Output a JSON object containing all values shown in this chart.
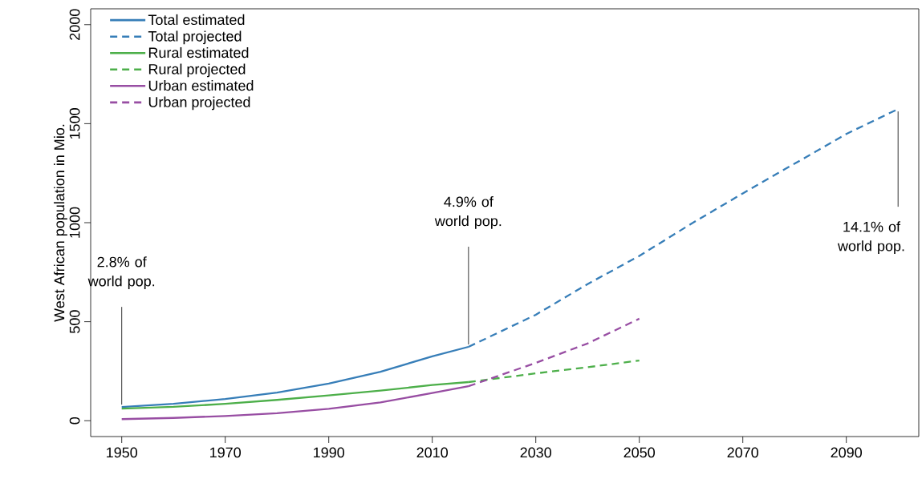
{
  "chart_data": {
    "type": "line",
    "ylabel": "West African population in Mio.",
    "xlim": [
      1944,
      2104
    ],
    "ylim": [
      -80,
      2080
    ],
    "xticks": [
      1950,
      1970,
      1990,
      2010,
      2030,
      2050,
      2070,
      2090
    ],
    "yticks": [
      0,
      500,
      1000,
      1500,
      2000
    ],
    "legend": "top left",
    "series": [
      {
        "name": "Total estimated",
        "color": "#377eb8",
        "line_style": "solid",
        "x": [
          1950,
          1960,
          1970,
          1980,
          1990,
          2000,
          2010,
          2017
        ],
        "values": [
          69,
          85,
          110,
          142,
          187,
          247,
          325,
          373
        ]
      },
      {
        "name": "Total projected",
        "color": "#377eb8",
        "line_style": "dashed",
        "x": [
          2017,
          2030,
          2040,
          2050,
          2060,
          2070,
          2080,
          2090,
          2100
        ],
        "values": [
          373,
          535,
          690,
          832,
          994,
          1148,
          1298,
          1448,
          1574
        ]
      },
      {
        "name": "Rural estimated",
        "color": "#4daf4a",
        "line_style": "solid",
        "x": [
          1950,
          1960,
          1970,
          1980,
          1990,
          2000,
          2010,
          2017
        ],
        "values": [
          61,
          70,
          85,
          105,
          128,
          152,
          180,
          195
        ]
      },
      {
        "name": "Rural projected",
        "color": "#4daf4a",
        "line_style": "dashed",
        "x": [
          2017,
          2030,
          2040,
          2050
        ],
        "values": [
          195,
          239,
          270,
          304
        ]
      },
      {
        "name": "Urban estimated",
        "color": "#984ea3",
        "line_style": "solid",
        "x": [
          1950,
          1960,
          1970,
          1980,
          1990,
          2000,
          2010,
          2017
        ],
        "values": [
          8,
          14,
          24,
          38,
          60,
          92,
          140,
          174
        ]
      },
      {
        "name": "Urban projected",
        "color": "#984ea3",
        "line_style": "dashed",
        "x": [
          2017,
          2030,
          2040,
          2050
        ],
        "values": [
          174,
          292,
          390,
          515
        ]
      }
    ],
    "annotations": [
      {
        "text": "2.8% of world pop.",
        "x": 1950,
        "y": 69
      },
      {
        "text": "4.9% of world pop.",
        "x": 2017,
        "y": 373
      },
      {
        "text": "14.1% of world pop.",
        "x": 2100,
        "y": 1574
      }
    ]
  }
}
